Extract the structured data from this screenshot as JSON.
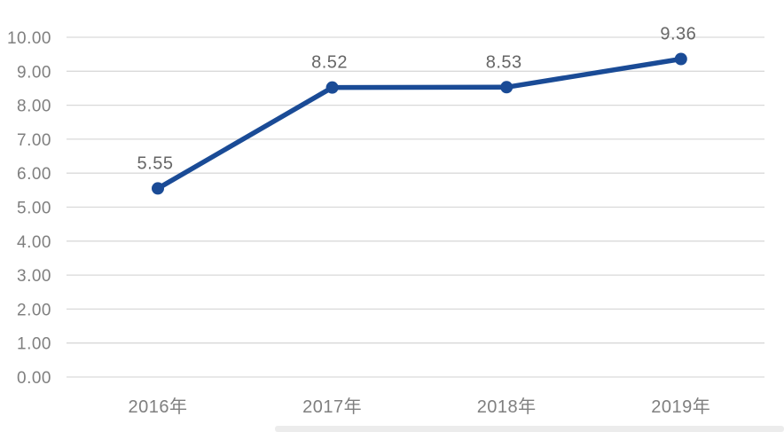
{
  "chart_data": {
    "type": "line",
    "title": "",
    "xlabel": "",
    "ylabel": "",
    "categories": [
      "2016年",
      "2017年",
      "2018年",
      "2019年"
    ],
    "series": [
      {
        "name": "",
        "values": [
          5.55,
          8.52,
          8.53,
          9.36
        ],
        "point_labels": [
          "5.55",
          "8.52",
          "8.53",
          "9.36"
        ]
      }
    ],
    "ylim": [
      0,
      10
    ],
    "ytick_step": 1,
    "ytick_labels": [
      "0.00",
      "1.00",
      "2.00",
      "3.00",
      "4.00",
      "5.00",
      "6.00",
      "7.00",
      "8.00",
      "9.00",
      "10.00"
    ],
    "grid": true,
    "legend": "none",
    "colors": {
      "line": "#1A4B96",
      "marker": "#1A4B96",
      "gridline": "#D9D9D9",
      "tick_text": "#7F7F7F",
      "category_text": "#7F7F7F",
      "data_label_text": "#666666",
      "background": "#FFFFFF",
      "bottom_strip": "#ECECEC"
    }
  }
}
